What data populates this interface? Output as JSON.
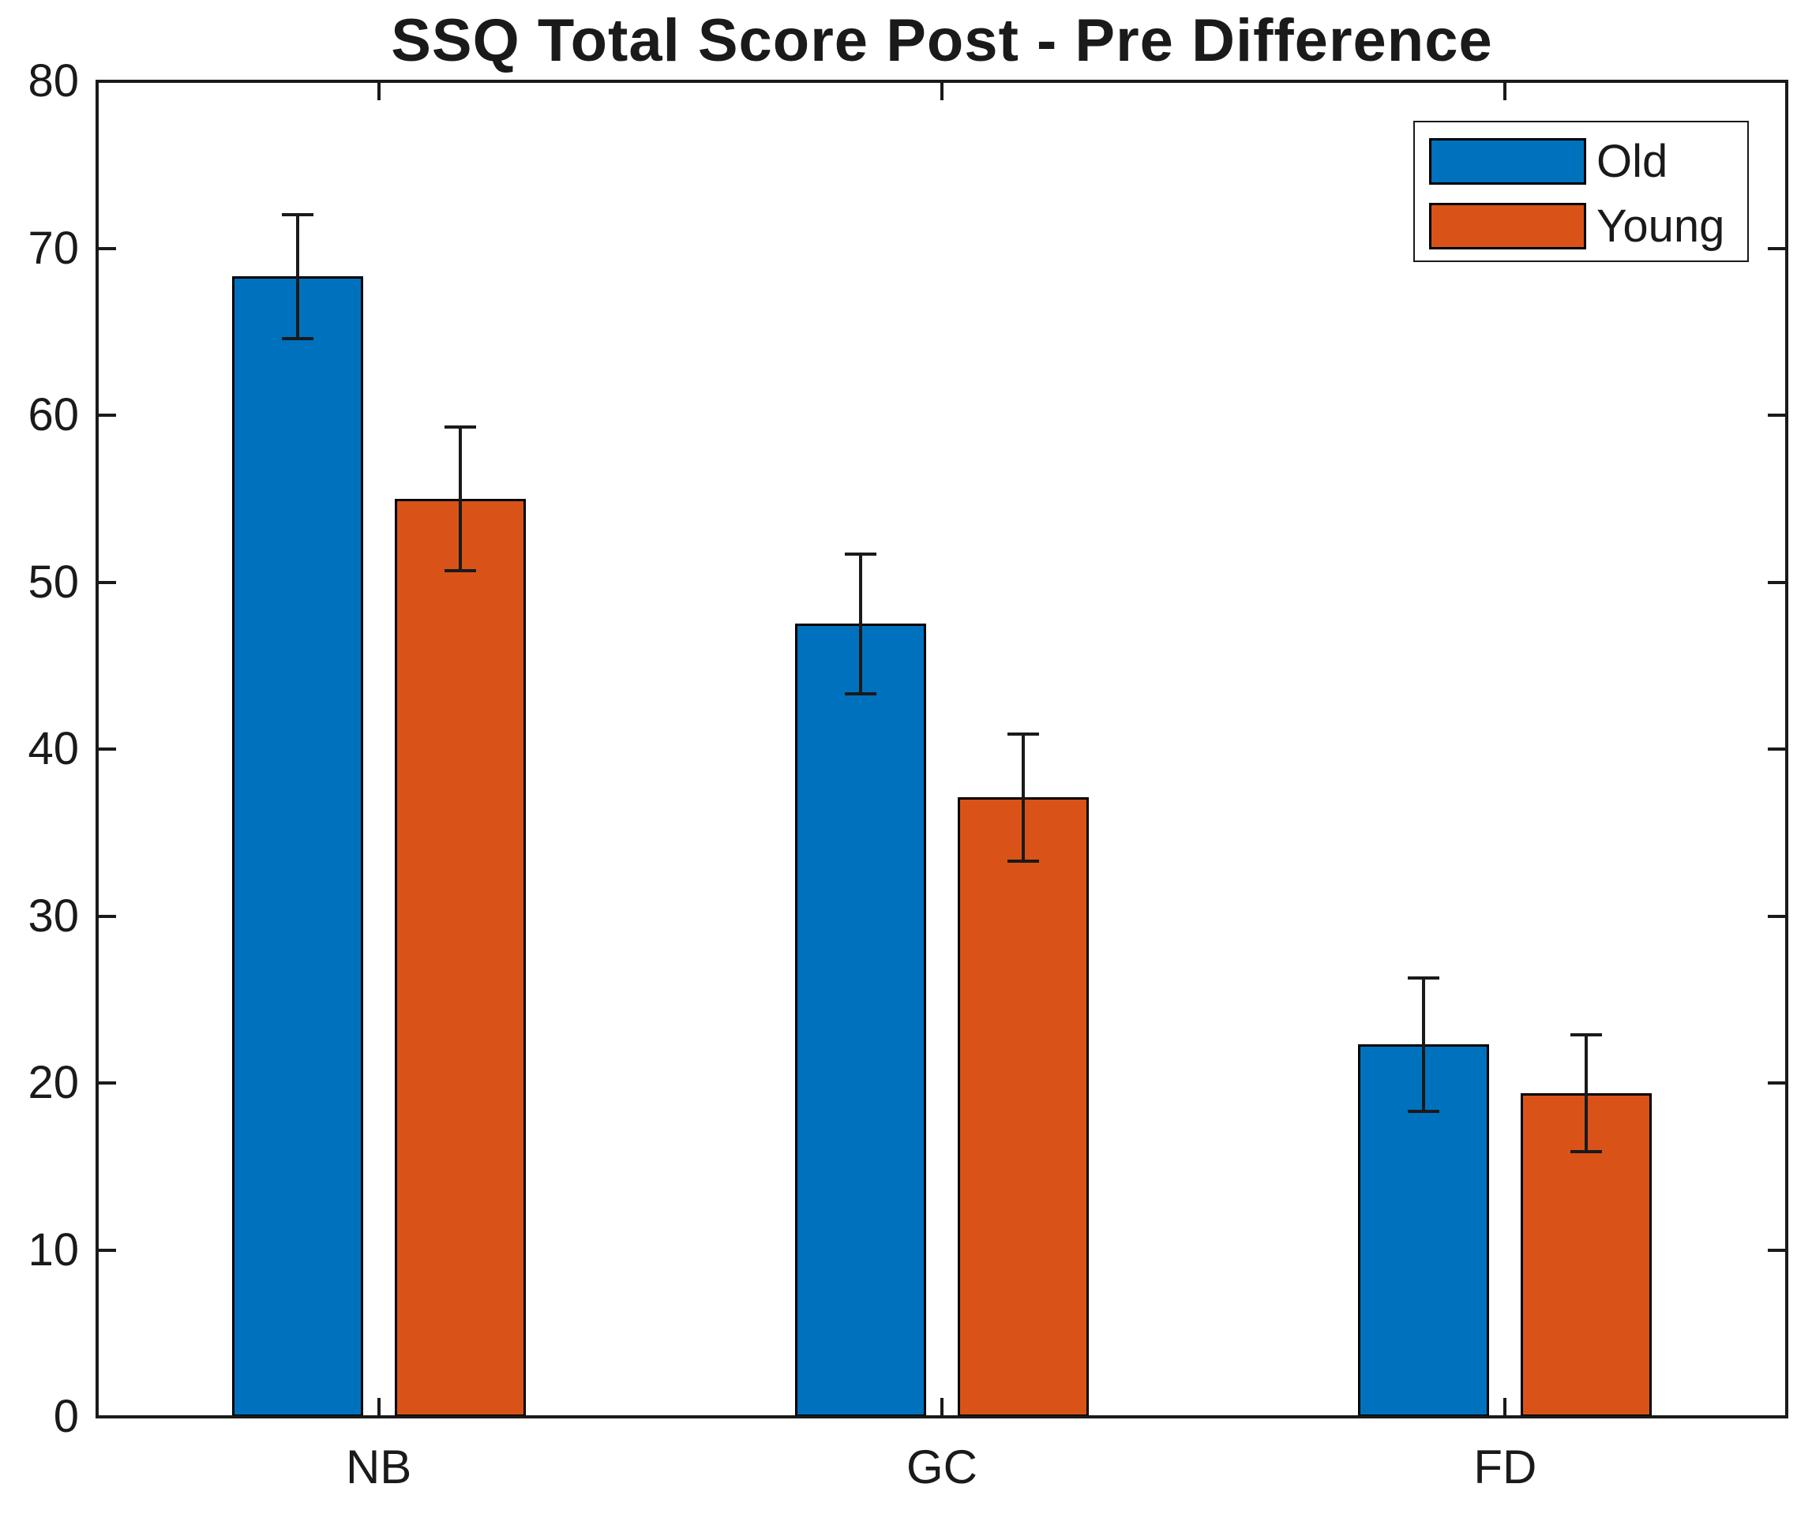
{
  "chart_data": {
    "type": "bar",
    "title": "SSQ Total Score Post - Pre Difference",
    "categories": [
      "NB",
      "GC",
      "FD"
    ],
    "series": [
      {
        "name": "Old",
        "color": "#0072BD",
        "values": [
          68.3,
          47.5,
          22.3
        ],
        "errors": [
          3.7,
          4.2,
          4.0
        ]
      },
      {
        "name": "Young",
        "color": "#D95319",
        "values": [
          55.0,
          37.1,
          19.4
        ],
        "errors": [
          4.3,
          3.8,
          3.5
        ]
      }
    ],
    "xlabel": "",
    "ylabel": "",
    "ylim": [
      0,
      80
    ],
    "yticks": [
      0,
      10,
      20,
      30,
      40,
      50,
      60,
      70,
      80
    ],
    "grid": false,
    "legend": {
      "position": "top-right",
      "entries": [
        "Old",
        "Young"
      ]
    },
    "colors": {
      "axis": "#1a1a1a",
      "bar_edge": "#000000",
      "error_bar": "#1a1a1a",
      "background": "#ffffff"
    }
  }
}
